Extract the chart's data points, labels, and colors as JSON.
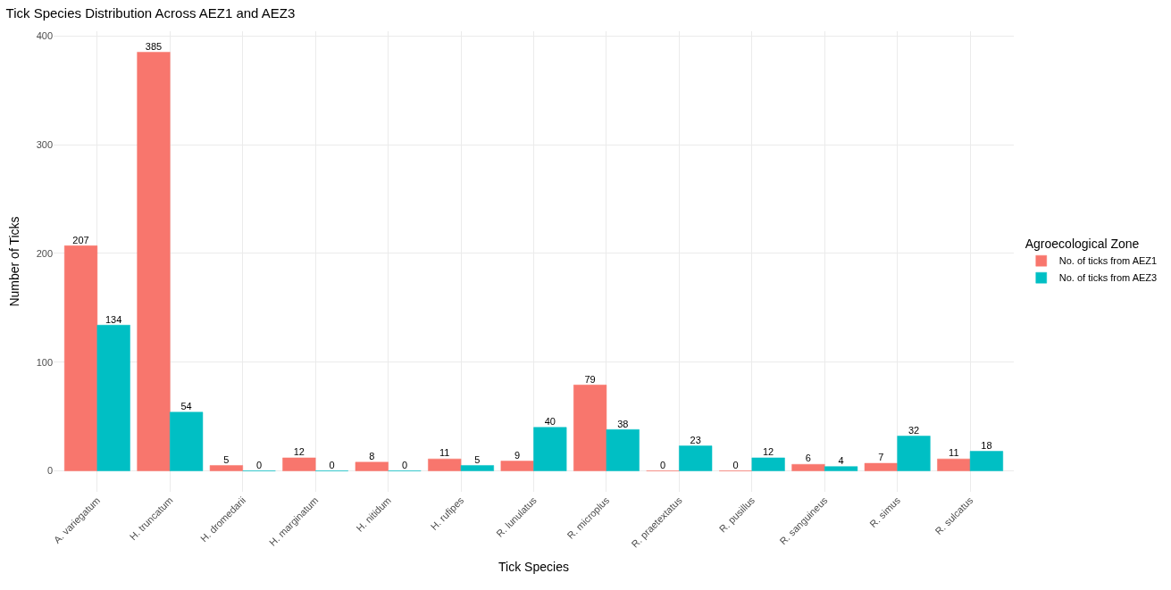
{
  "chart_data": {
    "type": "bar",
    "title": "Tick Species Distribution Across AEZ1 and AEZ3",
    "xlabel": "Tick Species",
    "ylabel": "Number of Ticks",
    "legend_title": "Agroecological Zone",
    "categories": [
      "A. variegatum",
      "H. truncatum",
      "H. dromedarii",
      "H. marginatum",
      "H. nitidum",
      "H. rufipes",
      "R. lunulatus",
      "R. microplus",
      "R. praetextatus",
      "R. pusillus",
      "R. sanguineus",
      "R. simus",
      "R. sulcatus"
    ],
    "series": [
      {
        "name": "No. of ticks from AEZ1",
        "color": "#f8766d",
        "values": [
          207,
          385,
          5,
          12,
          8,
          11,
          9,
          79,
          0,
          0,
          6,
          7,
          11
        ]
      },
      {
        "name": "No. of ticks from AEZ3",
        "color": "#00bfc4",
        "values": [
          134,
          54,
          0,
          0,
          0,
          5,
          40,
          38,
          23,
          12,
          4,
          32,
          18
        ]
      }
    ],
    "ylim": [
      -19.25,
      404.25
    ],
    "yticks": [
      0,
      100,
      200,
      300,
      400
    ],
    "grid": true,
    "legend": "right",
    "data_labels": true
  }
}
